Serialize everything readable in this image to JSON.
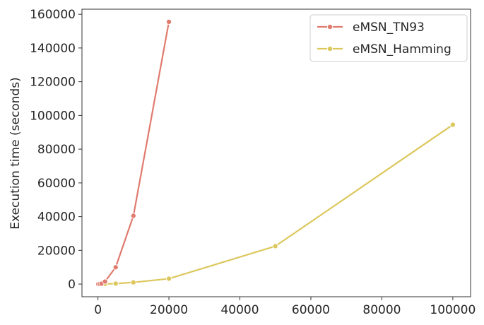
{
  "chart_data": {
    "type": "line",
    "title": "",
    "xlabel": "",
    "ylabel": "Execution time (seconds)",
    "xlim": [
      -4500,
      105000
    ],
    "ylim": [
      -7500,
      163000
    ],
    "xticks": [
      0,
      20000,
      40000,
      60000,
      80000,
      100000
    ],
    "yticks": [
      0,
      20000,
      40000,
      60000,
      80000,
      100000,
      120000,
      140000,
      160000
    ],
    "grid": false,
    "legend_position": "top-right",
    "series": [
      {
        "name": "eMSN_TN93",
        "color": "#e07b6e",
        "x": [
          100,
          500,
          1000,
          2000,
          5000,
          10000,
          20000
        ],
        "y": [
          5,
          60,
          250,
          1500,
          10000,
          40500,
          155500
        ]
      },
      {
        "name": "eMSN_Hamming",
        "color": "#dcc75c",
        "x": [
          100,
          500,
          1000,
          2000,
          5000,
          10000,
          20000,
          50000,
          100000
        ],
        "y": [
          1,
          5,
          15,
          60,
          300,
          1000,
          3200,
          22500,
          94500
        ]
      }
    ]
  }
}
